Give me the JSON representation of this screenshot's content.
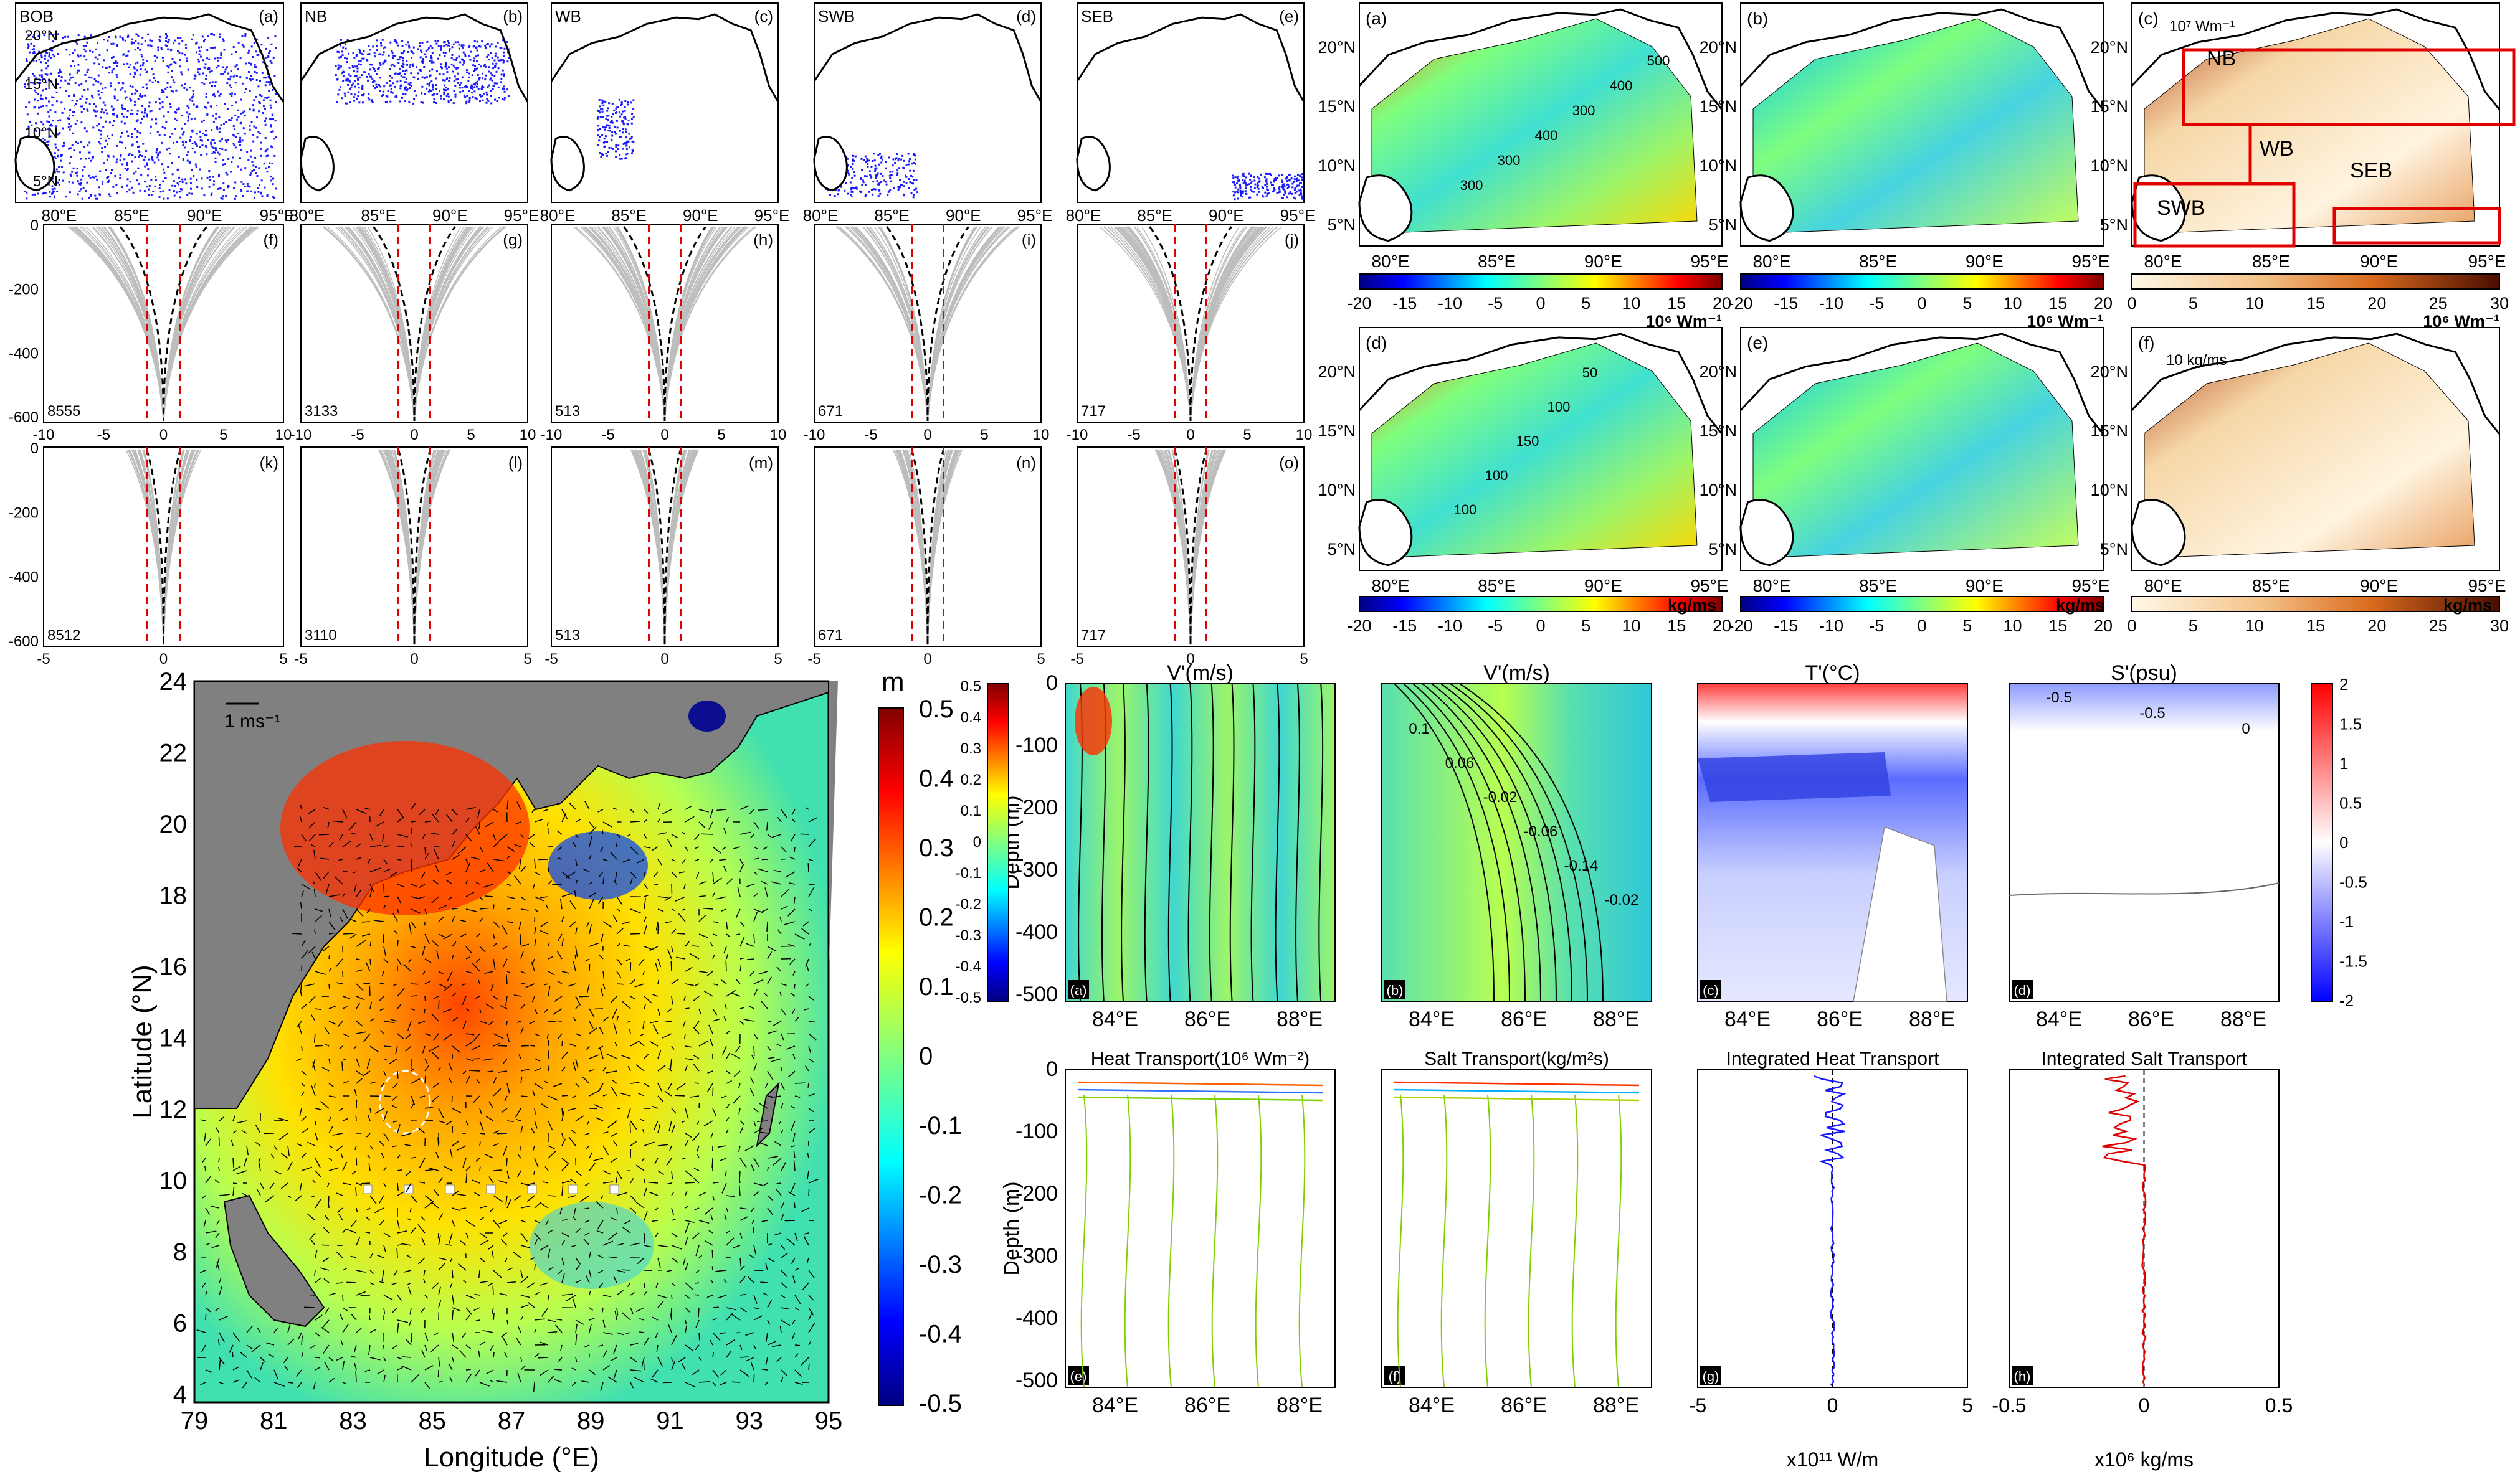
{
  "left_top": {
    "regions": [
      {
        "name": "BOB",
        "letter": "(a)"
      },
      {
        "name": "NB",
        "letter": "(b)"
      },
      {
        "name": "WB",
        "letter": "(c)"
      },
      {
        "name": "SWB",
        "letter": "(d)"
      },
      {
        "name": "SEB",
        "letter": "(e)"
      }
    ],
    "map_lon_ticks": [
      "80°E",
      "85°E",
      "90°E",
      "95°E"
    ],
    "map_lat_ticks": [
      "20°N",
      "15°N",
      "10°N",
      "5°N"
    ],
    "mid_letters": [
      "(f)",
      "(g)",
      "(h)",
      "(i)",
      "(j)"
    ],
    "mid_counts": [
      "8555",
      "3133",
      "513",
      "671",
      "717"
    ],
    "mid_yticks": [
      "0",
      "-200",
      "-400",
      "-600"
    ],
    "mid_xticks": [
      "-10",
      "-5",
      "0",
      "5",
      "10"
    ],
    "bot_letters": [
      "(k)",
      "(l)",
      "(m)",
      "(n)",
      "(o)"
    ],
    "bot_counts": [
      "8512",
      "3110",
      "513",
      "671",
      "717"
    ],
    "bot_yticks": [
      "0",
      "-200",
      "-400",
      "-600"
    ],
    "bot_xticks": [
      "-5",
      "0",
      "5"
    ]
  },
  "right_top": {
    "letters": [
      "(a)",
      "(b)",
      "(c)",
      "(d)",
      "(e)",
      "(f)"
    ],
    "lon_ticks": [
      "80°E",
      "85°E",
      "90°E",
      "95°E"
    ],
    "lat_ticks": [
      "20°N",
      "15°N",
      "10°N",
      "5°N"
    ],
    "region_labels": [
      "NB",
      "WB",
      "SEB",
      "SWB"
    ],
    "ref_arrow_c": "10⁷ Wm⁻¹",
    "ref_arrow_f": "10 kg/ms",
    "cb1_ticks": [
      "-20",
      "-15",
      "-10",
      "-5",
      "0",
      "5",
      "10",
      "15",
      "20"
    ],
    "cb1_unit": "10⁶ Wm⁻¹",
    "cb2_ticks": [
      "0",
      "5",
      "10",
      "15",
      "20",
      "25",
      "30"
    ],
    "cb2_unit": "10⁶ Wm⁻¹",
    "cb3_unit": "kg/ms",
    "contour_labels_a": [
      "500",
      "400",
      "300",
      "400",
      "300",
      "300"
    ],
    "contour_labels_d": [
      "50",
      "100",
      "150",
      "100",
      "100"
    ]
  },
  "big_map": {
    "ylabel": "Latitude (°N)",
    "xlabel": "Longitude (°E)",
    "yticks": [
      "24",
      "22",
      "20",
      "18",
      "16",
      "14",
      "12",
      "10",
      "8",
      "6",
      "4"
    ],
    "xticks": [
      "79",
      "81",
      "83",
      "85",
      "87",
      "89",
      "91",
      "93",
      "95"
    ],
    "ref_arrow": "1 ms⁻¹",
    "cb_unit": "m",
    "cb_ticks": [
      "0.5",
      "0.4",
      "0.3",
      "0.2",
      "0.1",
      "0",
      "-0.1",
      "-0.2",
      "-0.3",
      "-0.4",
      "-0.5"
    ]
  },
  "sections": {
    "titles": [
      "V'(m/s)",
      "V'(m/s)",
      "T'(°C)",
      "S'(psu)"
    ],
    "titles_bottom": [
      "Heat Transport(10⁶ Wm⁻²)",
      "Salt Transport(kg/m²s)",
      "Integrated Heat Transport",
      "Integrated Salt Transport"
    ],
    "ylabel": "Depth (m)",
    "yticks": [
      "0",
      "-100",
      "-200",
      "-300",
      "-400",
      "-500"
    ],
    "xticks": [
      "84°E",
      "86°E",
      "88°E"
    ],
    "letters": [
      "(a)",
      "(b)",
      "(c)",
      "(d)",
      "(e)",
      "(f)",
      "(g)",
      "(h)"
    ],
    "cb_a_ticks": [
      "0.5",
      "0.4",
      "0.3",
      "0.2",
      "0.1",
      "0",
      "-0.1",
      "-0.2",
      "-0.3",
      "-0.4",
      "-0.5"
    ],
    "cb_d_ticks": [
      "2",
      "1.5",
      "1",
      "0.5",
      "0",
      "-0.5",
      "-1",
      "-1.5",
      "-2"
    ],
    "g_xticks": [
      "-5",
      "0",
      "5"
    ],
    "g_xlabel": "x10¹¹ W/m",
    "h_xticks": [
      "-0.5",
      "0",
      "0.5"
    ],
    "h_xlabel": "x10⁶ kg/ms",
    "contour_b": [
      "0.1",
      "0.06",
      "-0.02",
      "-0.06",
      "-0.14",
      "-0.02"
    ],
    "contour_d": [
      "-0.5",
      "-0.5",
      "0"
    ]
  },
  "colors": {
    "scatter": "#1a1aff",
    "profile": "#bdbdbd",
    "dash_red": "#e00000",
    "region_box": "#e00000",
    "land": "#7f7f7f"
  }
}
